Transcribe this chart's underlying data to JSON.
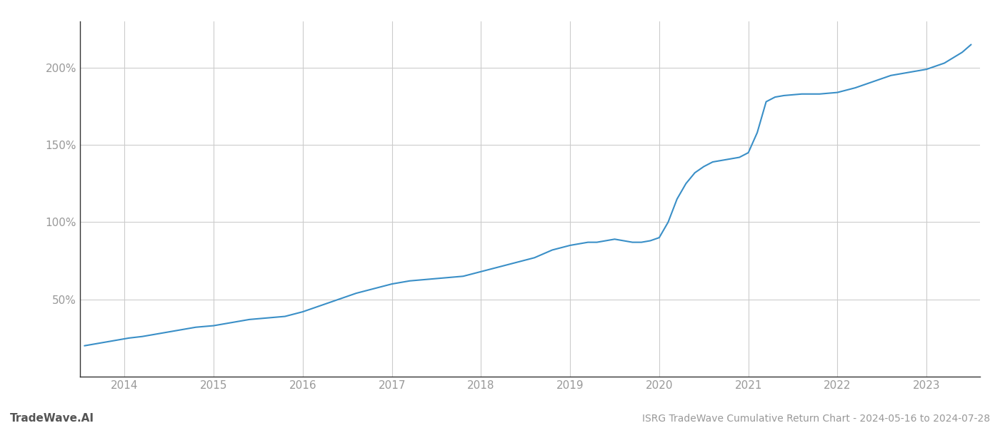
{
  "title": "ISRG TradeWave Cumulative Return Chart - 2024-05-16 to 2024-07-28",
  "watermark": "TradeWave.AI",
  "line_color": "#3a8fc7",
  "background_color": "#ffffff",
  "grid_color": "#cccccc",
  "x_years": [
    2014,
    2015,
    2016,
    2017,
    2018,
    2019,
    2020,
    2021,
    2022,
    2023
  ],
  "x_data": [
    2013.55,
    2013.65,
    2013.75,
    2013.85,
    2013.95,
    2014.05,
    2014.2,
    2014.4,
    2014.6,
    2014.8,
    2015.0,
    2015.2,
    2015.4,
    2015.6,
    2015.8,
    2016.0,
    2016.2,
    2016.4,
    2016.6,
    2016.8,
    2017.0,
    2017.2,
    2017.4,
    2017.6,
    2017.8,
    2018.0,
    2018.2,
    2018.4,
    2018.6,
    2018.8,
    2019.0,
    2019.1,
    2019.2,
    2019.3,
    2019.4,
    2019.5,
    2019.6,
    2019.7,
    2019.8,
    2019.9,
    2020.0,
    2020.1,
    2020.2,
    2020.3,
    2020.4,
    2020.5,
    2020.6,
    2020.7,
    2020.8,
    2020.9,
    2021.0,
    2021.1,
    2021.2,
    2021.3,
    2021.4,
    2021.6,
    2021.8,
    2022.0,
    2022.2,
    2022.4,
    2022.6,
    2022.8,
    2023.0,
    2023.2,
    2023.4,
    2023.5
  ],
  "y_data": [
    20,
    21,
    22,
    23,
    24,
    25,
    26,
    28,
    30,
    32,
    33,
    35,
    37,
    38,
    39,
    42,
    46,
    50,
    54,
    57,
    60,
    62,
    63,
    64,
    65,
    68,
    71,
    74,
    77,
    82,
    85,
    86,
    87,
    87,
    88,
    89,
    88,
    87,
    87,
    88,
    90,
    100,
    115,
    125,
    132,
    136,
    139,
    140,
    141,
    142,
    145,
    158,
    178,
    181,
    182,
    183,
    183,
    184,
    187,
    191,
    195,
    197,
    199,
    203,
    210,
    215
  ],
  "yticks": [
    50,
    100,
    150,
    200
  ],
  "ytick_labels": [
    "50%",
    "100%",
    "150%",
    "200%"
  ],
  "ylim": [
    0,
    230
  ],
  "xlim": [
    2013.5,
    2023.6
  ],
  "title_fontsize": 10,
  "watermark_fontsize": 11,
  "tick_label_color": "#999999",
  "line_width": 1.5,
  "spine_color": "#333333"
}
